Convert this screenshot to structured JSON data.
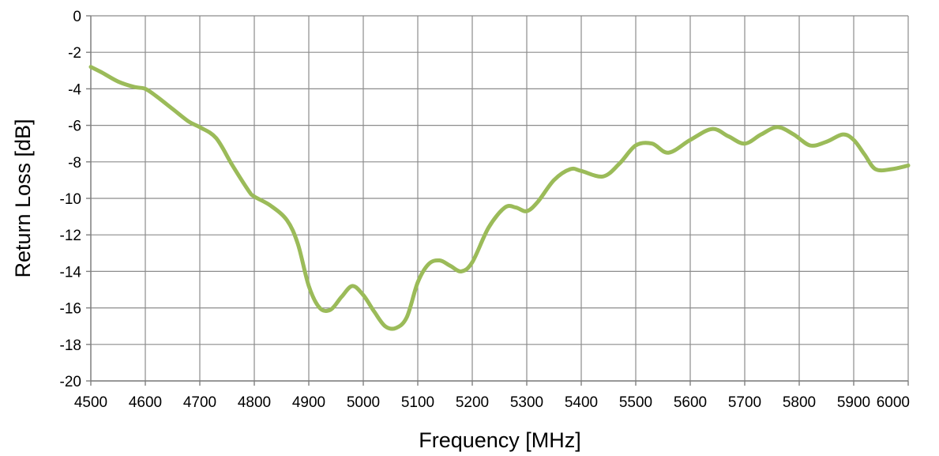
{
  "chart_data": {
    "type": "line",
    "title": "",
    "xlabel": "Frequency [MHz]",
    "ylabel": "Return  Loss [dB]",
    "xlim": [
      4500,
      6000
    ],
    "ylim": [
      -20,
      0
    ],
    "x_ticks": [
      4500,
      4600,
      4700,
      4800,
      4900,
      5000,
      5100,
      5200,
      5300,
      5400,
      5500,
      5600,
      5700,
      5800,
      5900,
      6000
    ],
    "y_ticks": [
      0,
      -2,
      -4,
      -6,
      -8,
      -10,
      -12,
      -14,
      -16,
      -18,
      -20
    ],
    "x_tick_labels": [
      "4500",
      "4600",
      "4700",
      "4800",
      "4900",
      "5000",
      "5100",
      "5200",
      "5300",
      "5400",
      "5500",
      "5600",
      "5700",
      "5800",
      "5900",
      "6000"
    ],
    "y_tick_labels": [
      "0",
      "-2",
      "-4",
      "-6",
      "-8",
      "-10",
      "-12",
      "-14",
      "-16",
      "-18",
      "-20"
    ],
    "grid": true,
    "legend": "none",
    "series": [
      {
        "color": "#9bbb59",
        "x": [
          4500,
          4520,
          4550,
          4580,
          4600,
          4620,
          4650,
          4680,
          4700,
          4730,
          4760,
          4790,
          4800,
          4830,
          4860,
          4880,
          4900,
          4920,
          4940,
          4960,
          4980,
          5000,
          5020,
          5040,
          5060,
          5080,
          5100,
          5120,
          5140,
          5160,
          5180,
          5200,
          5230,
          5260,
          5280,
          5300,
          5320,
          5350,
          5380,
          5400,
          5440,
          5470,
          5500,
          5530,
          5560,
          5600,
          5640,
          5670,
          5700,
          5730,
          5760,
          5790,
          5820,
          5850,
          5880,
          5900,
          5920,
          5940,
          5970,
          6000
        ],
        "y": [
          -2.8,
          -3.1,
          -3.6,
          -3.9,
          -4.0,
          -4.4,
          -5.1,
          -5.8,
          -6.1,
          -6.7,
          -8.2,
          -9.6,
          -9.9,
          -10.4,
          -11.2,
          -12.5,
          -14.8,
          -16.0,
          -16.1,
          -15.4,
          -14.8,
          -15.3,
          -16.2,
          -17.0,
          -17.1,
          -16.5,
          -14.6,
          -13.6,
          -13.4,
          -13.7,
          -14.0,
          -13.5,
          -11.6,
          -10.5,
          -10.5,
          -10.7,
          -10.2,
          -9.0,
          -8.4,
          -8.5,
          -8.8,
          -8.1,
          -7.1,
          -7.0,
          -7.5,
          -6.8,
          -6.2,
          -6.6,
          -7.0,
          -6.5,
          -6.1,
          -6.5,
          -7.1,
          -6.9,
          -6.5,
          -6.8,
          -7.6,
          -8.4,
          -8.4,
          -8.2
        ]
      }
    ]
  }
}
